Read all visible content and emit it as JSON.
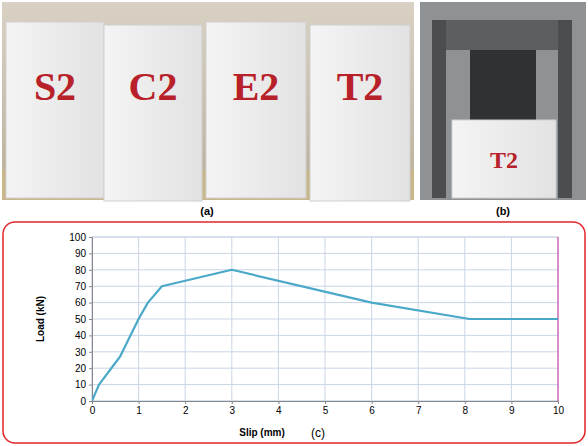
{
  "photos": {
    "a": {
      "label": "(a)",
      "specimens": [
        "S2",
        "C2",
        "E2",
        "T2"
      ]
    },
    "b": {
      "label": "(b)",
      "specimen": "T2"
    }
  },
  "chart_data": {
    "type": "line",
    "panel_label": "(c)",
    "x_label": "Slip (mm)",
    "y_label": "Load (kN)",
    "x": [
      0,
      0.15,
      0.6,
      1,
      1.2,
      1.5,
      3,
      6,
      8.1,
      10
    ],
    "values": [
      0,
      10,
      27,
      50,
      60,
      70,
      80,
      60,
      50,
      50
    ],
    "color": "#4aa8c8",
    "xlim": [
      0,
      10
    ],
    "xticks": [
      0,
      1,
      2,
      3,
      4,
      5,
      6,
      7,
      8,
      9,
      10
    ],
    "ylim": [
      0,
      100
    ],
    "yticks": [
      0,
      10,
      20,
      30,
      40,
      50,
      60,
      70,
      80,
      90,
      100
    ],
    "grid": true
  }
}
